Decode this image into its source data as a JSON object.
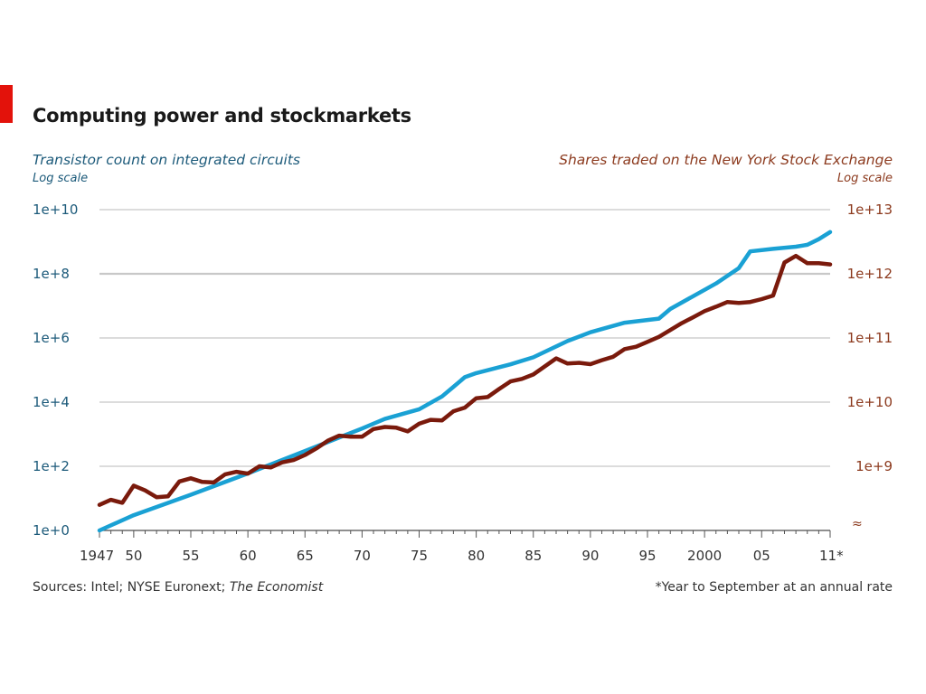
{
  "title": "Computing power and stockmarkets",
  "subtitle_left": "Transistor count on integrated circuits",
  "scale_left": "Log scale",
  "subtitle_right": "Shares traded on the New York Stock Exchange",
  "scale_right": "Log scale",
  "footer": {
    "sources_prefix": "Sources: Intel; NYSE Euronext;",
    "sources_italic": "The Economist",
    "note": "*Year to September at an annual rate"
  },
  "colors": {
    "transistors": "#1aa1d4",
    "shares": "#7a1a0c",
    "left_axis_text": "#1c5a7a",
    "right_axis_text": "#8c3a1e",
    "grid": "#c8c8c8",
    "brand_red": "#e3120b"
  },
  "chart_data": {
    "type": "line",
    "title": "Computing power and stockmarkets",
    "x_ticks": [
      "1947",
      "50",
      "55",
      "60",
      "65",
      "70",
      "75",
      "80",
      "85",
      "90",
      "95",
      "2000",
      "05",
      "11*"
    ],
    "x_tick_years": [
      1947,
      1950,
      1955,
      1960,
      1965,
      1970,
      1975,
      1980,
      1985,
      1990,
      1995,
      2000,
      2005,
      2011
    ],
    "xlim": [
      1947,
      2011
    ],
    "axes": {
      "left": {
        "label": "Transistor count on integrated circuits",
        "scale": "log",
        "ticks": [
          "1e+10",
          "1e+8",
          "1e+6",
          "1e+4",
          "1e+2",
          "1e+0"
        ],
        "ylim": [
          1,
          10000000000
        ]
      },
      "right": {
        "label": "Shares traded on the New York Stock Exchange",
        "scale": "log",
        "ticks": [
          "1e+13",
          "1e+12",
          "1e+11",
          "1e+10",
          "1e+9"
        ],
        "ylim": [
          100000000,
          10000000000000
        ],
        "axis_break": true
      }
    },
    "grid": true,
    "series": [
      {
        "axis": "left",
        "color": "#1aa1d4",
        "x": [
          1947,
          1950,
          1955,
          1960,
          1965,
          1970,
          1972,
          1975,
          1977,
          1978,
          1979,
          1980,
          1983,
          1985,
          1988,
          1990,
          1993,
          1996,
          1997,
          1999,
          2001,
          2003,
          2004,
          2006,
          2008,
          2009,
          2010,
          2011
        ],
        "y": [
          1,
          3,
          13,
          60,
          300,
          1500,
          3000,
          6000,
          15000,
          30000,
          60000,
          80000,
          150000,
          250000,
          800000,
          1500000,
          3000000,
          4000000,
          8000000,
          20000000,
          50000000,
          150000000,
          500000000,
          600000000,
          700000000,
          800000000,
          1200000000,
          2000000000
        ]
      },
      {
        "axis": "right",
        "color": "#7a1a0c",
        "x": [
          1947,
          1948,
          1949,
          1950,
          1951,
          1952,
          1953,
          1954,
          1955,
          1956,
          1957,
          1958,
          1959,
          1960,
          1961,
          1962,
          1963,
          1964,
          1965,
          1966,
          1967,
          1968,
          1969,
          1970,
          1971,
          1972,
          1973,
          1974,
          1975,
          1976,
          1977,
          1978,
          1979,
          1980,
          1981,
          1982,
          1983,
          1984,
          1985,
          1986,
          1987,
          1988,
          1989,
          1990,
          1991,
          1992,
          1993,
          1994,
          1995,
          1996,
          1997,
          1998,
          1999,
          2000,
          2001,
          2002,
          2003,
          2004,
          2005,
          2006,
          2007,
          2008,
          2009,
          2010,
          2011
        ],
        "y": [
          250000000,
          300000000,
          270000000,
          500000000,
          420000000,
          330000000,
          340000000,
          580000000,
          650000000,
          570000000,
          560000000,
          750000000,
          820000000,
          770000000,
          1000000000,
          960000000,
          1150000000,
          1250000000,
          1500000000,
          1900000000,
          2500000000,
          3000000000,
          2900000000,
          2900000000,
          3800000000,
          4100000000,
          4000000000,
          3500000000,
          4600000000,
          5300000000,
          5200000000,
          7200000000,
          8200000000,
          11500000000,
          12000000000,
          16000000000,
          21000000000,
          23000000000,
          27000000000,
          36000000000,
          48000000000,
          40000000000,
          41000000000,
          39000000000,
          45000000000,
          51000000000,
          67000000000,
          73000000000,
          87000000000,
          104000000000,
          133000000000,
          170000000000,
          210000000000,
          262000000000,
          307000000000,
          363000000000,
          352000000000,
          364000000000,
          403000000000,
          457000000000,
          1500000000000,
          1900000000000,
          1460000000000,
          1460000000000,
          1400000000000
        ],
        "notes": "Shares series plotted against right log axis"
      }
    ]
  }
}
